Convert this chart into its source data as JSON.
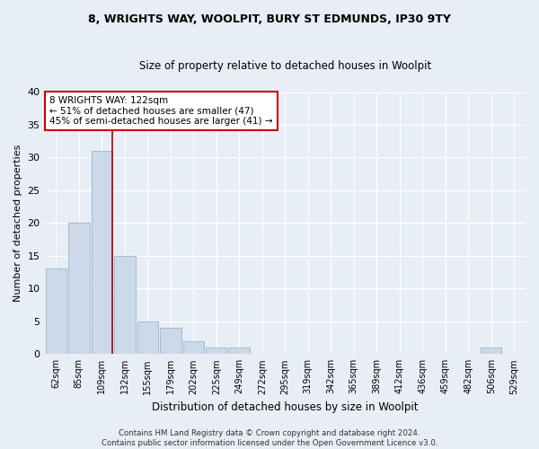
{
  "title1": "8, WRIGHTS WAY, WOOLPIT, BURY ST EDMUNDS, IP30 9TY",
  "title2": "Size of property relative to detached houses in Woolpit",
  "xlabel": "Distribution of detached houses by size in Woolpit",
  "ylabel": "Number of detached properties",
  "bar_labels": [
    "62sqm",
    "85sqm",
    "109sqm",
    "132sqm",
    "155sqm",
    "179sqm",
    "202sqm",
    "225sqm",
    "249sqm",
    "272sqm",
    "295sqm",
    "319sqm",
    "342sqm",
    "365sqm",
    "389sqm",
    "412sqm",
    "436sqm",
    "459sqm",
    "482sqm",
    "506sqm",
    "529sqm"
  ],
  "bar_values": [
    13,
    20,
    31,
    15,
    5,
    4,
    2,
    1,
    1,
    0,
    0,
    0,
    0,
    0,
    0,
    0,
    0,
    0,
    0,
    1,
    0
  ],
  "bar_color": "#ccd9e8",
  "bar_edge_color": "#aabdd4",
  "highlight_line_index": 2,
  "annotation_line1": "8 WRIGHTS WAY: 122sqm",
  "annotation_line2": "← 51% of detached houses are smaller (47)",
  "annotation_line3": "45% of semi-detached houses are larger (41) →",
  "annotation_box_color": "#ffffff",
  "annotation_box_edge": "#cc0000",
  "highlight_line_color": "#aa0000",
  "ylim": [
    0,
    40
  ],
  "yticks": [
    0,
    5,
    10,
    15,
    20,
    25,
    30,
    35,
    40
  ],
  "footnote": "Contains HM Land Registry data © Crown copyright and database right 2024.\nContains public sector information licensed under the Open Government Licence v3.0.",
  "bg_color": "#e8eef5",
  "plot_bg_color": "#e8eef5",
  "grid_color": "#ffffff",
  "title1_fontsize": 9,
  "title2_fontsize": 8.5,
  "ylabel_fontsize": 8,
  "xlabel_fontsize": 8.5
}
